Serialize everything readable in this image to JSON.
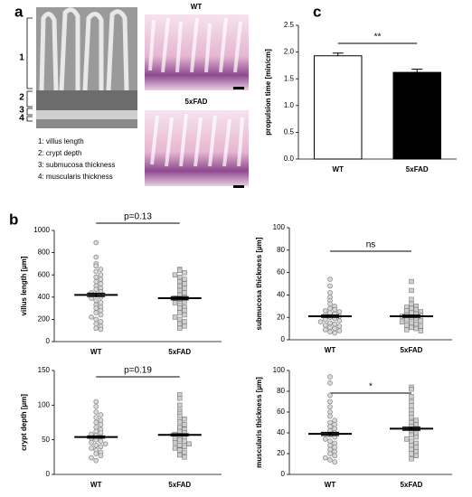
{
  "panel_a": {
    "letter": "a",
    "image_labels": [
      "WT",
      "5xFAD"
    ],
    "region_labels": [
      "1",
      "2",
      "3",
      "4"
    ],
    "legend": [
      "1: villus length",
      "2: crypt depth",
      "3: submucosa thickness",
      "4: muscularis thickness"
    ]
  },
  "panel_b": {
    "letter": "b"
  },
  "panel_c": {
    "letter": "c"
  },
  "chart_data": [
    {
      "type": "bar",
      "categories": [
        "WT",
        "5xFAD"
      ],
      "values": [
        1.93,
        1.62
      ],
      "errors": [
        0.05,
        0.06
      ],
      "colors": [
        "#ffffff",
        "#000000"
      ],
      "ylabel": "propulsion time [min/cm]",
      "annotation": "**",
      "ylim": [
        0,
        2.5
      ],
      "yticks": [
        {
          "value": 0,
          "label": "0.0"
        },
        0.5,
        {
          "value": 1,
          "label": "1.0"
        },
        1.5,
        {
          "value": 2,
          "label": "2.0"
        },
        2.5
      ]
    },
    {
      "type": "dotplot",
      "categories": [
        "WT",
        "5xFAD"
      ],
      "ylabel": "villus length [µm]",
      "annotation": "p=0.13",
      "ylim": [
        0,
        1000
      ],
      "yticks": [
        0,
        200,
        400,
        600,
        800,
        1000
      ],
      "groups": [
        {
          "marker": "circle",
          "color": "#d9d9d9",
          "mean": 420,
          "sem": 15,
          "values": [
            890,
            760,
            700,
            680,
            650,
            630,
            600,
            580,
            560,
            540,
            520,
            500,
            480,
            470,
            450,
            440,
            420,
            400,
            390,
            370,
            350,
            330,
            310,
            300,
            280,
            260,
            240,
            220,
            200,
            180,
            160,
            140,
            120,
            110
          ]
        },
        {
          "marker": "square",
          "color": "#cfcfcf",
          "mean": 390,
          "sem": 14,
          "values": [
            650,
            640,
            620,
            600,
            580,
            560,
            540,
            520,
            500,
            480,
            460,
            440,
            420,
            400,
            390,
            380,
            360,
            350,
            330,
            310,
            300,
            280,
            260,
            240,
            220,
            200,
            180,
            160,
            140,
            120
          ]
        }
      ]
    },
    {
      "type": "dotplot",
      "categories": [
        "WT",
        "5xFAD"
      ],
      "ylabel": "submucosa thickness [µm]",
      "annotation": "ns",
      "ylim": [
        0,
        100
      ],
      "yticks": [
        0,
        20,
        40,
        60,
        80,
        100
      ],
      "groups": [
        {
          "marker": "circle",
          "color": "#d9d9d9",
          "mean": 21,
          "sem": 1,
          "values": [
            54,
            48,
            42,
            38,
            35,
            32,
            30,
            28,
            27,
            26,
            25,
            24,
            23,
            22,
            21,
            20,
            19,
            18,
            17,
            16,
            15,
            14,
            13,
            12,
            11,
            10,
            9,
            8,
            7,
            6
          ]
        },
        {
          "marker": "square",
          "color": "#cfcfcf",
          "mean": 21,
          "sem": 1,
          "values": [
            52,
            44,
            36,
            32,
            30,
            29,
            28,
            27,
            26,
            25,
            24,
            23,
            22,
            22,
            21,
            20,
            19,
            18,
            17,
            16,
            15,
            14,
            13,
            12,
            11,
            10,
            9,
            8
          ]
        }
      ]
    },
    {
      "type": "dotplot",
      "categories": [
        "WT",
        "5xFAD"
      ],
      "ylabel": "crypt depth [µm]",
      "annotation": "p=0.19",
      "ylim": [
        0,
        150
      ],
      "yticks": [
        0,
        50,
        100,
        150
      ],
      "groups": [
        {
          "marker": "circle",
          "color": "#d9d9d9",
          "mean": 54,
          "sem": 1.5,
          "values": [
            105,
            98,
            90,
            86,
            82,
            78,
            75,
            72,
            68,
            65,
            62,
            60,
            58,
            56,
            54,
            52,
            50,
            48,
            46,
            44,
            42,
            40,
            38,
            35,
            32,
            30,
            27,
            24,
            20
          ]
        },
        {
          "marker": "square",
          "color": "#cfcfcf",
          "mean": 57,
          "sem": 1.5,
          "values": [
            115,
            110,
            100,
            92,
            88,
            84,
            80,
            76,
            72,
            68,
            65,
            62,
            60,
            58,
            56,
            54,
            52,
            50,
            48,
            46,
            44,
            42,
            40,
            38,
            35,
            32,
            28,
            25
          ]
        }
      ]
    },
    {
      "type": "dotplot",
      "categories": [
        "WT",
        "5xFAD"
      ],
      "ylabel": "muscularis thickness [µm]",
      "annotation": "*",
      "ylim": [
        0,
        100
      ],
      "yticks": [
        0,
        20,
        40,
        60,
        80,
        100
      ],
      "groups": [
        {
          "marker": "circle",
          "color": "#d9d9d9",
          "mean": 39,
          "sem": 1.5,
          "values": [
            94,
            88,
            76,
            70,
            65,
            60,
            56,
            52,
            50,
            48,
            46,
            44,
            42,
            40,
            38,
            36,
            34,
            32,
            30,
            28,
            26,
            24,
            22,
            20,
            18,
            16,
            14,
            12
          ]
        },
        {
          "marker": "square",
          "color": "#cfcfcf",
          "mean": 44,
          "sem": 1.5,
          "values": [
            84,
            82,
            75,
            70,
            66,
            62,
            58,
            55,
            52,
            50,
            48,
            46,
            44,
            42,
            40,
            38,
            36,
            34,
            32,
            30,
            28,
            26,
            24,
            22,
            20,
            18,
            15
          ]
        }
      ]
    }
  ]
}
